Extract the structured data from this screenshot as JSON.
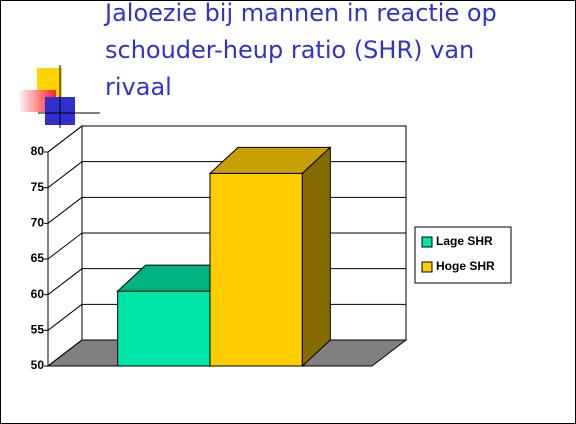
{
  "chart_data": {
    "type": "bar3d",
    "title": [
      "Jaloezie bij mannen in reactie op",
      "schouder-heup ratio (SHR) van",
      "rivaal"
    ],
    "categories": [
      null
    ],
    "series": [
      {
        "name": "Lage SHR",
        "color": "#00e5a8",
        "values": [
          60.5
        ]
      },
      {
        "name": "Hoge SHR",
        "color": "#ffcc00",
        "values": [
          77
        ]
      }
    ],
    "ylim": [
      50,
      80
    ],
    "yticks": [
      50,
      55,
      60,
      65,
      70,
      75,
      80
    ],
    "grid": true,
    "legend": "right"
  }
}
